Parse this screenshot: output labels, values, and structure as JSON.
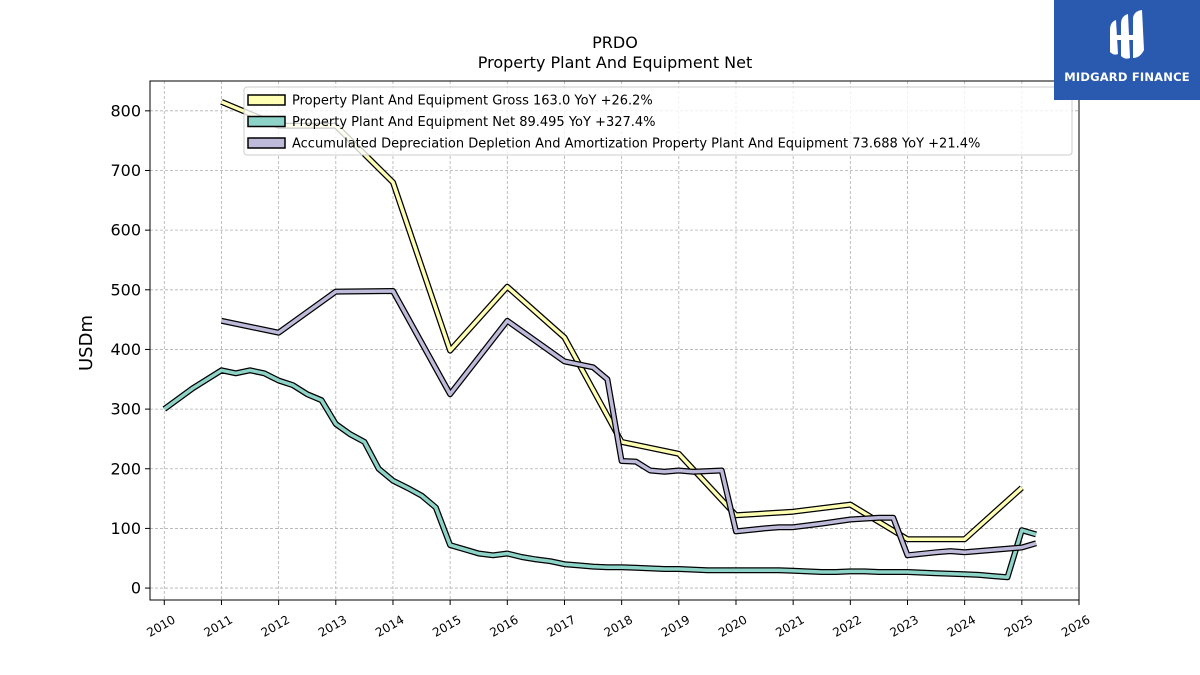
{
  "brand": {
    "name": "MIDGARD FINANCE",
    "color": "#2a5ab0"
  },
  "chart_data": {
    "type": "line",
    "title": "PRDO",
    "subtitle": "Property Plant And Equipment Net",
    "xlabel": "",
    "ylabel": "USDm",
    "xlim": [
      2009.75,
      2026.0
    ],
    "ylim": [
      -20,
      850
    ],
    "x_ticks": [
      "2010",
      "2011",
      "2012",
      "2013",
      "2014",
      "2015",
      "2016",
      "2017",
      "2018",
      "2019",
      "2020",
      "2021",
      "2022",
      "2023",
      "2024",
      "2025",
      "2026"
    ],
    "y_ticks": [
      0,
      100,
      200,
      300,
      400,
      500,
      600,
      700,
      800
    ],
    "grid": true,
    "legend_position": "top-left",
    "series": [
      {
        "name": "Property Plant And Equipment Gross  163.0 YoY +26.2%",
        "color": "#ffffb3",
        "x": [
          2011.0,
          2012.0,
          2013.0,
          2014.0,
          2015.0,
          2016.0,
          2017.0,
          2018.0,
          2019.0,
          2020.0,
          2021.0,
          2022.0,
          2023.0,
          2024.0,
          2025.0
        ],
        "y": [
          815,
          775,
          775,
          680,
          398,
          505,
          420,
          245,
          225,
          122,
          128,
          140,
          82,
          82,
          168
        ]
      },
      {
        "name": "Property Plant And Equipment Net  89.495 YoY +327.4%",
        "color": "#8dd3c7",
        "x": [
          2010.0,
          2010.5,
          2011.0,
          2011.25,
          2011.5,
          2011.75,
          2012.0,
          2012.25,
          2012.5,
          2012.75,
          2013.0,
          2013.25,
          2013.5,
          2013.75,
          2014.0,
          2014.25,
          2014.5,
          2014.75,
          2015.0,
          2015.25,
          2015.5,
          2015.75,
          2016.0,
          2016.25,
          2016.5,
          2016.75,
          2017.0,
          2017.25,
          2017.5,
          2017.75,
          2018.0,
          2018.25,
          2018.5,
          2018.75,
          2019.0,
          2019.25,
          2019.5,
          2019.75,
          2020.0,
          2020.25,
          2020.5,
          2020.75,
          2021.0,
          2021.25,
          2021.5,
          2021.75,
          2022.0,
          2022.25,
          2022.5,
          2022.75,
          2023.0,
          2023.25,
          2023.5,
          2023.75,
          2024.0,
          2024.25,
          2024.5,
          2024.75,
          2025.0,
          2025.25
        ],
        "y": [
          300,
          335,
          365,
          360,
          365,
          360,
          348,
          340,
          325,
          315,
          275,
          258,
          245,
          200,
          180,
          168,
          155,
          135,
          72,
          65,
          58,
          55,
          58,
          52,
          48,
          45,
          40,
          38,
          36,
          35,
          35,
          34,
          33,
          32,
          32,
          31,
          30,
          30,
          30,
          30,
          30,
          30,
          29,
          28,
          27,
          27,
          28,
          28,
          27,
          27,
          27,
          26,
          25,
          24,
          23,
          22,
          20,
          18,
          97,
          90
        ]
      },
      {
        "name": "Accumulated Depreciation Depletion And Amortization Property Plant And Equipment  73.688 YoY +21.4%",
        "color": "#bebada",
        "x": [
          2011.0,
          2012.0,
          2013.0,
          2014.0,
          2015.0,
          2016.0,
          2017.0,
          2017.5,
          2017.75,
          2018.0,
          2018.25,
          2018.5,
          2018.75,
          2019.0,
          2019.25,
          2019.5,
          2019.75,
          2020.0,
          2020.5,
          2020.75,
          2021.0,
          2021.5,
          2022.0,
          2022.5,
          2022.75,
          2023.0,
          2023.5,
          2023.75,
          2024.0,
          2024.5,
          2025.0,
          2025.25
        ],
        "y": [
          448,
          428,
          497,
          498,
          325,
          448,
          380,
          370,
          350,
          213,
          212,
          197,
          195,
          197,
          195,
          196,
          197,
          95,
          100,
          102,
          102,
          108,
          115,
          118,
          118,
          55,
          60,
          62,
          60,
          64,
          68,
          75
        ]
      }
    ]
  }
}
